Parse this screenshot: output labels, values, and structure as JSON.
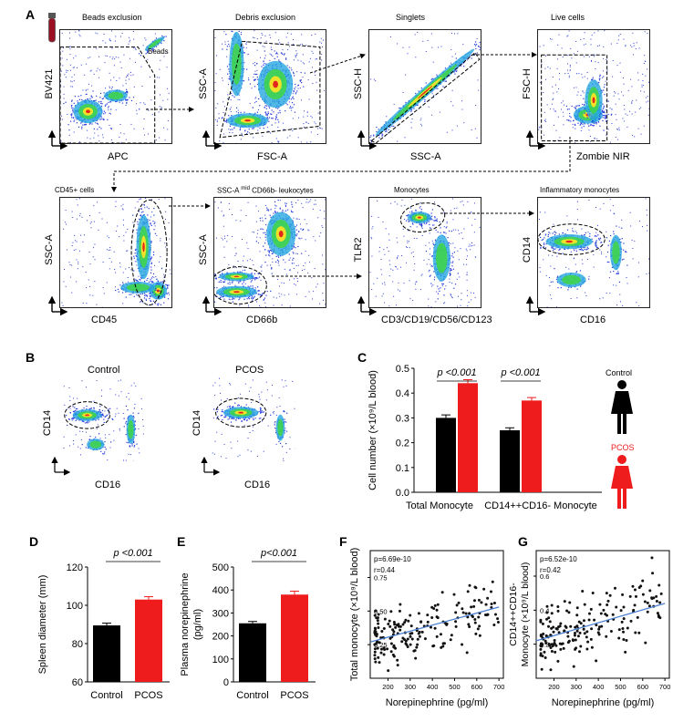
{
  "panels": {
    "A": "A",
    "B": "B",
    "C": "C",
    "D": "D",
    "E": "E",
    "F": "F",
    "G": "G"
  },
  "panelA": {
    "plots": [
      {
        "title": "Beads exclusion",
        "xlabel": "APC",
        "ylabel": "BV421",
        "gate": "Beads"
      },
      {
        "title": "Debris exclusion",
        "xlabel": "FSC-A",
        "ylabel": "SSC-A"
      },
      {
        "title": "Singlets",
        "xlabel": "SSC-A",
        "ylabel": "SSC-H"
      },
      {
        "title": "Live cells",
        "xlabel": "Zombie NIR",
        "ylabel": "FSC-H"
      },
      {
        "title": "CD45+ cells",
        "xlabel": "CD45",
        "ylabel": "SSC-A"
      },
      {
        "title_pre": "SSC-A",
        "title_sup": "mid",
        "title_post": " CD66b- leukocytes",
        "xlabel": "CD66b",
        "ylabel": "SSC-A"
      },
      {
        "title": "Monocytes",
        "xlabel": "CD3/CD19/CD56/CD123",
        "ylabel": "TLR2"
      },
      {
        "title": "Inflammatory monocytes",
        "xlabel": "CD16",
        "ylabel": "CD14"
      }
    ]
  },
  "panelB": {
    "plots": [
      {
        "title": "Control",
        "xlabel": "CD16",
        "ylabel": "CD14"
      },
      {
        "title": "PCOS",
        "xlabel": "CD16",
        "ylabel": "CD14"
      }
    ]
  },
  "legend": {
    "control": "Control",
    "pcos": "PCOS"
  },
  "colors": {
    "control": "#000000",
    "pcos": "#ee1c1c",
    "regression": "#4a7fd0"
  },
  "chart_data": [
    {
      "id": "C",
      "type": "bar",
      "categories": [
        "Total Monocyte",
        "CD14++CD16- Monocyte"
      ],
      "series": [
        {
          "name": "Control",
          "values": [
            0.3,
            0.25
          ],
          "err": [
            0.012,
            0.01
          ]
        },
        {
          "name": "PCOS",
          "values": [
            0.44,
            0.37
          ],
          "err": [
            0.014,
            0.012
          ]
        }
      ],
      "ylabel": "Cell number (×10⁹/L blood)",
      "ylim": [
        0,
        0.5
      ],
      "yticks": [
        "0.0",
        "0.1",
        "0.2",
        "0.3",
        "0.4",
        "0.5"
      ],
      "annotations": [
        "p <0.001",
        "p <0.001"
      ]
    },
    {
      "id": "D",
      "type": "bar",
      "categories": [
        "Control",
        "PCOS"
      ],
      "values": [
        89.5,
        103
      ],
      "err": [
        1.2,
        1.5
      ],
      "ylabel": "Spleen diameter (mm)",
      "ylim": [
        60,
        120
      ],
      "yticks": [
        "60",
        "80",
        "100",
        "120"
      ],
      "annotation": "p <0.001"
    },
    {
      "id": "E",
      "type": "bar",
      "categories": [
        "Control",
        "PCOS"
      ],
      "values": [
        255,
        380
      ],
      "err": [
        8,
        15
      ],
      "ylabel": "Plasma norepinephrine (pg/ml)",
      "ylim": [
        0,
        500
      ],
      "yticks": [
        "0",
        "100",
        "200",
        "300",
        "400",
        "500"
      ],
      "annotation": "p<0.001"
    },
    {
      "id": "F",
      "type": "scatter",
      "xlabel": "Norepinephrine (pg/ml)",
      "ylabel": "Total monocyte (×10⁹/L blood)",
      "xlim": [
        120,
        720
      ],
      "ylim": [
        0.0,
        0.95
      ],
      "xticks": [
        "200",
        "300",
        "400",
        "500",
        "600",
        "700"
      ],
      "yticks": [
        "0.25",
        "0.50",
        "0.75"
      ],
      "stats": [
        "p=6.69e-10",
        "r=0.44"
      ],
      "regression": {
        "x": [
          120,
          700
        ],
        "y": [
          0.27,
          0.53
        ]
      }
    },
    {
      "id": "G",
      "type": "scatter",
      "xlabel": "Norepinephrine (pg/ml)",
      "ylabel": "CD14++CD16- Monocyte (×10⁹/L blood)",
      "xlim": [
        120,
        720
      ],
      "ylim": [
        0.0,
        0.75
      ],
      "xticks": [
        "200",
        "300",
        "400",
        "500",
        "600",
        "700"
      ],
      "yticks": [
        "0.2",
        "0.4",
        "0.6"
      ],
      "stats": [
        "p=6.52e-10",
        "r=0.42"
      ],
      "regression": {
        "x": [
          120,
          700
        ],
        "y": [
          0.22,
          0.44
        ]
      }
    }
  ]
}
